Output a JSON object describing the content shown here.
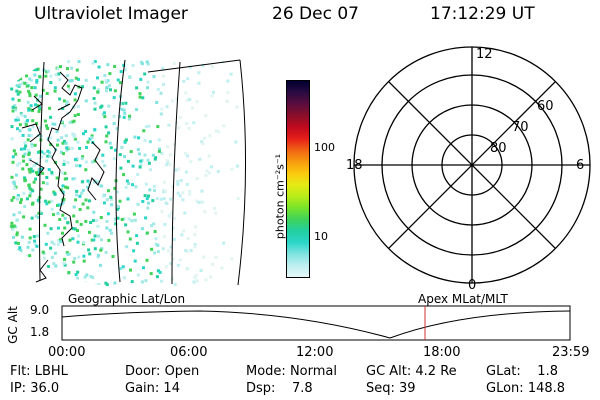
{
  "header": {
    "instrument": "Ultraviolet Imager",
    "date": "26 Dec 07",
    "time": "17:12:29 UT"
  },
  "colorbar": {
    "unit_label": "photon cm⁻²s⁻¹",
    "tick_labels": [
      "100",
      "10"
    ],
    "colors": [
      "#000030",
      "#2a0b42",
      "#5a0d3e",
      "#8a0f2a",
      "#c00a1f",
      "#e61e19",
      "#f06414",
      "#f79b0f",
      "#fbc90d",
      "#e6ea14",
      "#b8ec1a",
      "#78e32a",
      "#3fd35a",
      "#22cfa0",
      "#2ad6c8",
      "#7fe3e0",
      "#bfeff0",
      "#e6f7f7"
    ]
  },
  "polar_plot": {
    "mlt_labels": {
      "top": "12",
      "left": "18",
      "right": "6",
      "bottom": "0"
    },
    "lat_labels": [
      "60",
      "70",
      "80"
    ]
  },
  "timeline": {
    "axis_label": "GC Alt",
    "y_ticks": [
      "9.0",
      "1.8"
    ],
    "left_caption": "Geographic Lat/Lon",
    "right_caption": "Apex  MLat/MLT",
    "x_ticks": [
      "00:00",
      "06:00",
      "12:00",
      "18:00",
      "23:59"
    ],
    "marker_color": "#d03030"
  },
  "status": {
    "row1": [
      {
        "label": "Flt:",
        "value": "LBHL"
      },
      {
        "label": "Door:",
        "value": "Open"
      },
      {
        "label": "Mode:",
        "value": "Normal"
      },
      {
        "label": "GC Alt:",
        "value": "4.2 Re"
      },
      {
        "label": "GLat:",
        "value": "1.8"
      }
    ],
    "row2": [
      {
        "label": "IP:",
        "value": "36.0"
      },
      {
        "label": "Gain:",
        "value": "14"
      },
      {
        "label": "Dsp:",
        "value": "7.8"
      },
      {
        "label": "Seq:",
        "value": "39"
      },
      {
        "label": "GLon:",
        "value": "148.8"
      }
    ]
  }
}
